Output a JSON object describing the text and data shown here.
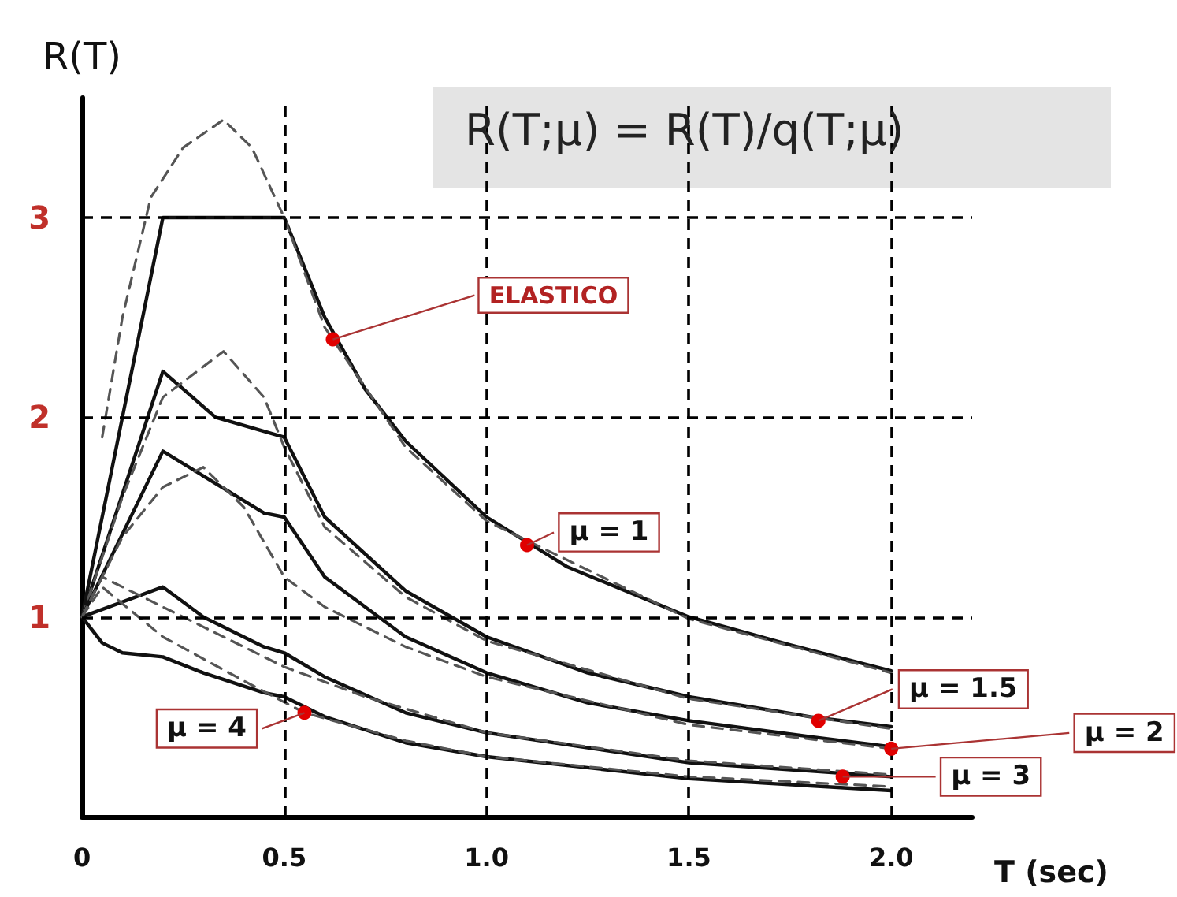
{
  "chart_data": {
    "type": "line",
    "xlabel": "T (sec)",
    "ylabel": "R(T)",
    "xlim": [
      0,
      2.2
    ],
    "xticks": [
      0,
      0.5,
      {
        "value": 1,
        "label": "1.0"
      },
      1.5,
      {
        "value": 2,
        "label": "2.0"
      }
    ],
    "ylim": [
      0,
      3.6
    ],
    "yticks": [
      1,
      2,
      3
    ],
    "grid": false,
    "marker": "none",
    "series": [
      {
        "color": "#111111",
        "line_style": "solid",
        "x": [
          0,
          0.2,
          0.5,
          0.6,
          0.7,
          0.8,
          1.0,
          1.2,
          1.5,
          1.75,
          2.0
        ],
        "values": [
          1,
          3,
          3,
          2.5,
          2.14,
          1.88,
          1.5,
          1.25,
          1.0,
          0.86,
          0.73
        ]
      },
      {
        "color": "#555555",
        "line_style": "dashed",
        "x": [
          0.05,
          0.1,
          0.17,
          0.25,
          0.35,
          0.42,
          0.5,
          0.6,
          0.8,
          1.0,
          1.5,
          2.0
        ],
        "values": [
          1.9,
          2.5,
          3.1,
          3.35,
          3.49,
          3.35,
          3.0,
          2.45,
          1.85,
          1.48,
          0.99,
          0.72
        ]
      },
      {
        "color": "#111111",
        "line_style": "solid",
        "x": [
          0,
          0.2,
          0.33,
          0.5,
          0.6,
          0.8,
          1.0,
          1.25,
          1.5,
          1.8,
          2.0
        ],
        "values": [
          1,
          2.23,
          2.0,
          1.9,
          1.5,
          1.13,
          0.9,
          0.72,
          0.6,
          0.5,
          0.45
        ]
      },
      {
        "color": "#555555",
        "line_style": "dashed",
        "x": [
          0,
          0.1,
          0.2,
          0.35,
          0.45,
          0.5,
          0.6,
          0.8,
          1.0,
          1.5,
          2.0
        ],
        "values": [
          1,
          1.6,
          2.1,
          2.33,
          2.1,
          1.85,
          1.45,
          1.1,
          0.88,
          0.59,
          0.44
        ]
      },
      {
        "color": "#111111",
        "line_style": "solid",
        "x": [
          0,
          0.2,
          0.45,
          0.5,
          0.6,
          0.8,
          1.0,
          1.25,
          1.5,
          1.8,
          2.0
        ],
        "values": [
          1,
          1.83,
          1.52,
          1.5,
          1.2,
          0.9,
          0.72,
          0.57,
          0.48,
          0.4,
          0.35
        ]
      },
      {
        "color": "#555555",
        "line_style": "dashed",
        "x": [
          0,
          0.1,
          0.2,
          0.3,
          0.4,
          0.5,
          0.6,
          0.8,
          1.0,
          1.5,
          2.0
        ],
        "values": [
          1,
          1.4,
          1.65,
          1.75,
          1.55,
          1.2,
          1.05,
          0.85,
          0.7,
          0.46,
          0.34
        ]
      },
      {
        "color": "#111111",
        "line_style": "solid",
        "x": [
          0,
          0.2,
          0.3,
          0.45,
          0.5,
          0.6,
          0.8,
          1.0,
          1.5,
          2.0
        ],
        "values": [
          1,
          1.15,
          1.0,
          0.85,
          0.82,
          0.7,
          0.52,
          0.42,
          0.27,
          0.2
        ]
      },
      {
        "color": "#555555",
        "line_style": "dashed",
        "x": [
          0,
          0.05,
          0.15,
          0.3,
          0.5,
          0.7,
          1.0,
          1.5,
          2.0
        ],
        "values": [
          1,
          1.2,
          1.1,
          0.95,
          0.75,
          0.6,
          0.42,
          0.28,
          0.21
        ]
      },
      {
        "color": "#111111",
        "line_style": "solid",
        "x": [
          0,
          0.05,
          0.1,
          0.2,
          0.3,
          0.45,
          0.5,
          0.6,
          0.8,
          1.0,
          1.5,
          2.0
        ],
        "values": [
          1,
          0.87,
          0.82,
          0.8,
          0.72,
          0.62,
          0.6,
          0.5,
          0.37,
          0.3,
          0.19,
          0.13
        ]
      },
      {
        "color": "#555555",
        "line_style": "dashed",
        "x": [
          0,
          0.05,
          0.2,
          0.4,
          0.55,
          0.8,
          1.0,
          1.5,
          2.0
        ],
        "values": [
          1,
          1.15,
          0.9,
          0.68,
          0.52,
          0.38,
          0.3,
          0.2,
          0.15
        ]
      }
    ],
    "ref_lines": [
      {
        "axis": "y",
        "value": 1,
        "line_style": "dashed"
      },
      {
        "axis": "y",
        "value": 2,
        "line_style": "dashed"
      },
      {
        "axis": "y",
        "value": 3,
        "line_style": "dashed"
      },
      {
        "axis": "x",
        "value": 0.5,
        "line_style": "dashed"
      },
      {
        "axis": "x",
        "value": 1,
        "line_style": "dashed"
      },
      {
        "axis": "x",
        "value": 1.5,
        "line_style": "dashed"
      },
      {
        "axis": "x",
        "value": 2,
        "line_style": "dashed"
      }
    ],
    "annotations": [
      "R(T;μ) = R(T)/q(T;μ)",
      {
        "text": "ELASTICO",
        "x": 0.62,
        "y": 2.39
      },
      {
        "text": "μ = 1",
        "x": 1.1,
        "y": 1.36
      },
      {
        "text": "μ = 1.5",
        "x": 1.82,
        "y": 0.48
      },
      {
        "text": "μ = 2",
        "x": 2.0,
        "y": 0.34
      },
      {
        "text": "μ = 3",
        "x": 1.88,
        "y": 0.2
      },
      {
        "text": "μ = 4",
        "x": 0.55,
        "y": 0.52
      }
    ]
  }
}
